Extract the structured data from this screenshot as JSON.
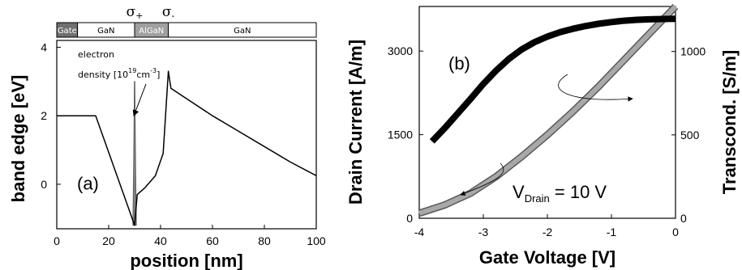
{
  "chart_data": [
    {
      "type": "line",
      "panel_label": "(a)",
      "xlabel": "position [nm]",
      "ylabel": "band edge [eV]",
      "xlim": [
        0,
        100
      ],
      "ylim": [
        -1.3,
        4.2
      ],
      "x_ticks": [
        0,
        20,
        40,
        60,
        80,
        100
      ],
      "y_ticks": [
        0,
        2,
        4
      ],
      "layers": [
        {
          "label": "Gate",
          "from": 0,
          "to": 8,
          "color": "#707070",
          "text_color": "#ffffff"
        },
        {
          "label": "GaN",
          "from": 8,
          "to": 30,
          "color": "#ffffff",
          "text_color": "#000000"
        },
        {
          "label": "AlGaN",
          "from": 30,
          "to": 43,
          "color": "#a0a0a0",
          "text_color": "#ffffff"
        },
        {
          "label": "GaN",
          "from": 43,
          "to": 100,
          "color": "#ffffff",
          "text_color": "#000000"
        }
      ],
      "interface_labels": [
        {
          "label": "σ+",
          "x": 30
        },
        {
          "label": "σ-",
          "x": 43
        }
      ],
      "annotation": {
        "line1": "electron",
        "line2": "density [10",
        "sup1": "19",
        "mid": "cm",
        "sup2": "-3",
        "end": "]",
        "arrow_to_x": 30
      },
      "series": [
        {
          "color": "#000000",
          "x": [
            0,
            15,
            30,
            31,
            34,
            38,
            41,
            43,
            44,
            50,
            60,
            70,
            80,
            90,
            100
          ],
          "y": [
            2.0,
            2.0,
            -1.2,
            -0.3,
            -0.1,
            0.25,
            0.9,
            3.3,
            2.8,
            2.5,
            2.0,
            1.55,
            1.1,
            0.65,
            0.25
          ]
        }
      ],
      "density_profile": {
        "color": "#808080",
        "x": [
          29.3,
          29.6,
          29.9,
          30.1,
          30.4,
          30.7
        ],
        "y": [
          -1.2,
          0.5,
          3.0,
          3.0,
          0.5,
          -1.2
        ]
      }
    },
    {
      "type": "line",
      "panel_label": "(b)",
      "xlabel": "Gate Voltage [V]",
      "ylabel": "Drain Current [A/m]",
      "y2label": "Transcond. [S/m]",
      "xlim": [
        -4,
        0
      ],
      "ylim": [
        0,
        3800
      ],
      "y2lim": [
        0,
        1270
      ],
      "x_ticks": [
        -4,
        -3,
        -2,
        -1,
        0
      ],
      "y_ticks": [
        0,
        1500,
        3000
      ],
      "y2_ticks": [
        0,
        500,
        1000
      ],
      "annotation": {
        "prefix": "V",
        "sub": "Drain",
        "suffix": " = 10 V"
      },
      "series": [
        {
          "color": "#000000",
          "axis": "left",
          "x": [
            -3.8,
            -3.6,
            -3.4,
            -3.2,
            -3.0,
            -2.8,
            -2.6,
            -2.4,
            -2.2,
            -2.0,
            -1.8,
            -1.6,
            -1.4,
            -1.2,
            -1.0,
            -0.8,
            -0.6,
            -0.4,
            -0.2,
            0.0
          ],
          "y": [
            1380,
            1620,
            1880,
            2140,
            2410,
            2650,
            2860,
            3030,
            3160,
            3260,
            3340,
            3400,
            3450,
            3490,
            3520,
            3545,
            3560,
            3570,
            3575,
            3578
          ]
        },
        {
          "color": "#a8a8a8",
          "axis": "right",
          "x": [
            -4.0,
            -3.6,
            -3.2,
            -2.8,
            -2.4,
            -2.0,
            -1.6,
            -1.2,
            -0.8,
            -0.4,
            0.0
          ],
          "y": [
            30,
            80,
            150,
            250,
            370,
            500,
            640,
            790,
            950,
            1110,
            1270
          ]
        }
      ]
    }
  ]
}
